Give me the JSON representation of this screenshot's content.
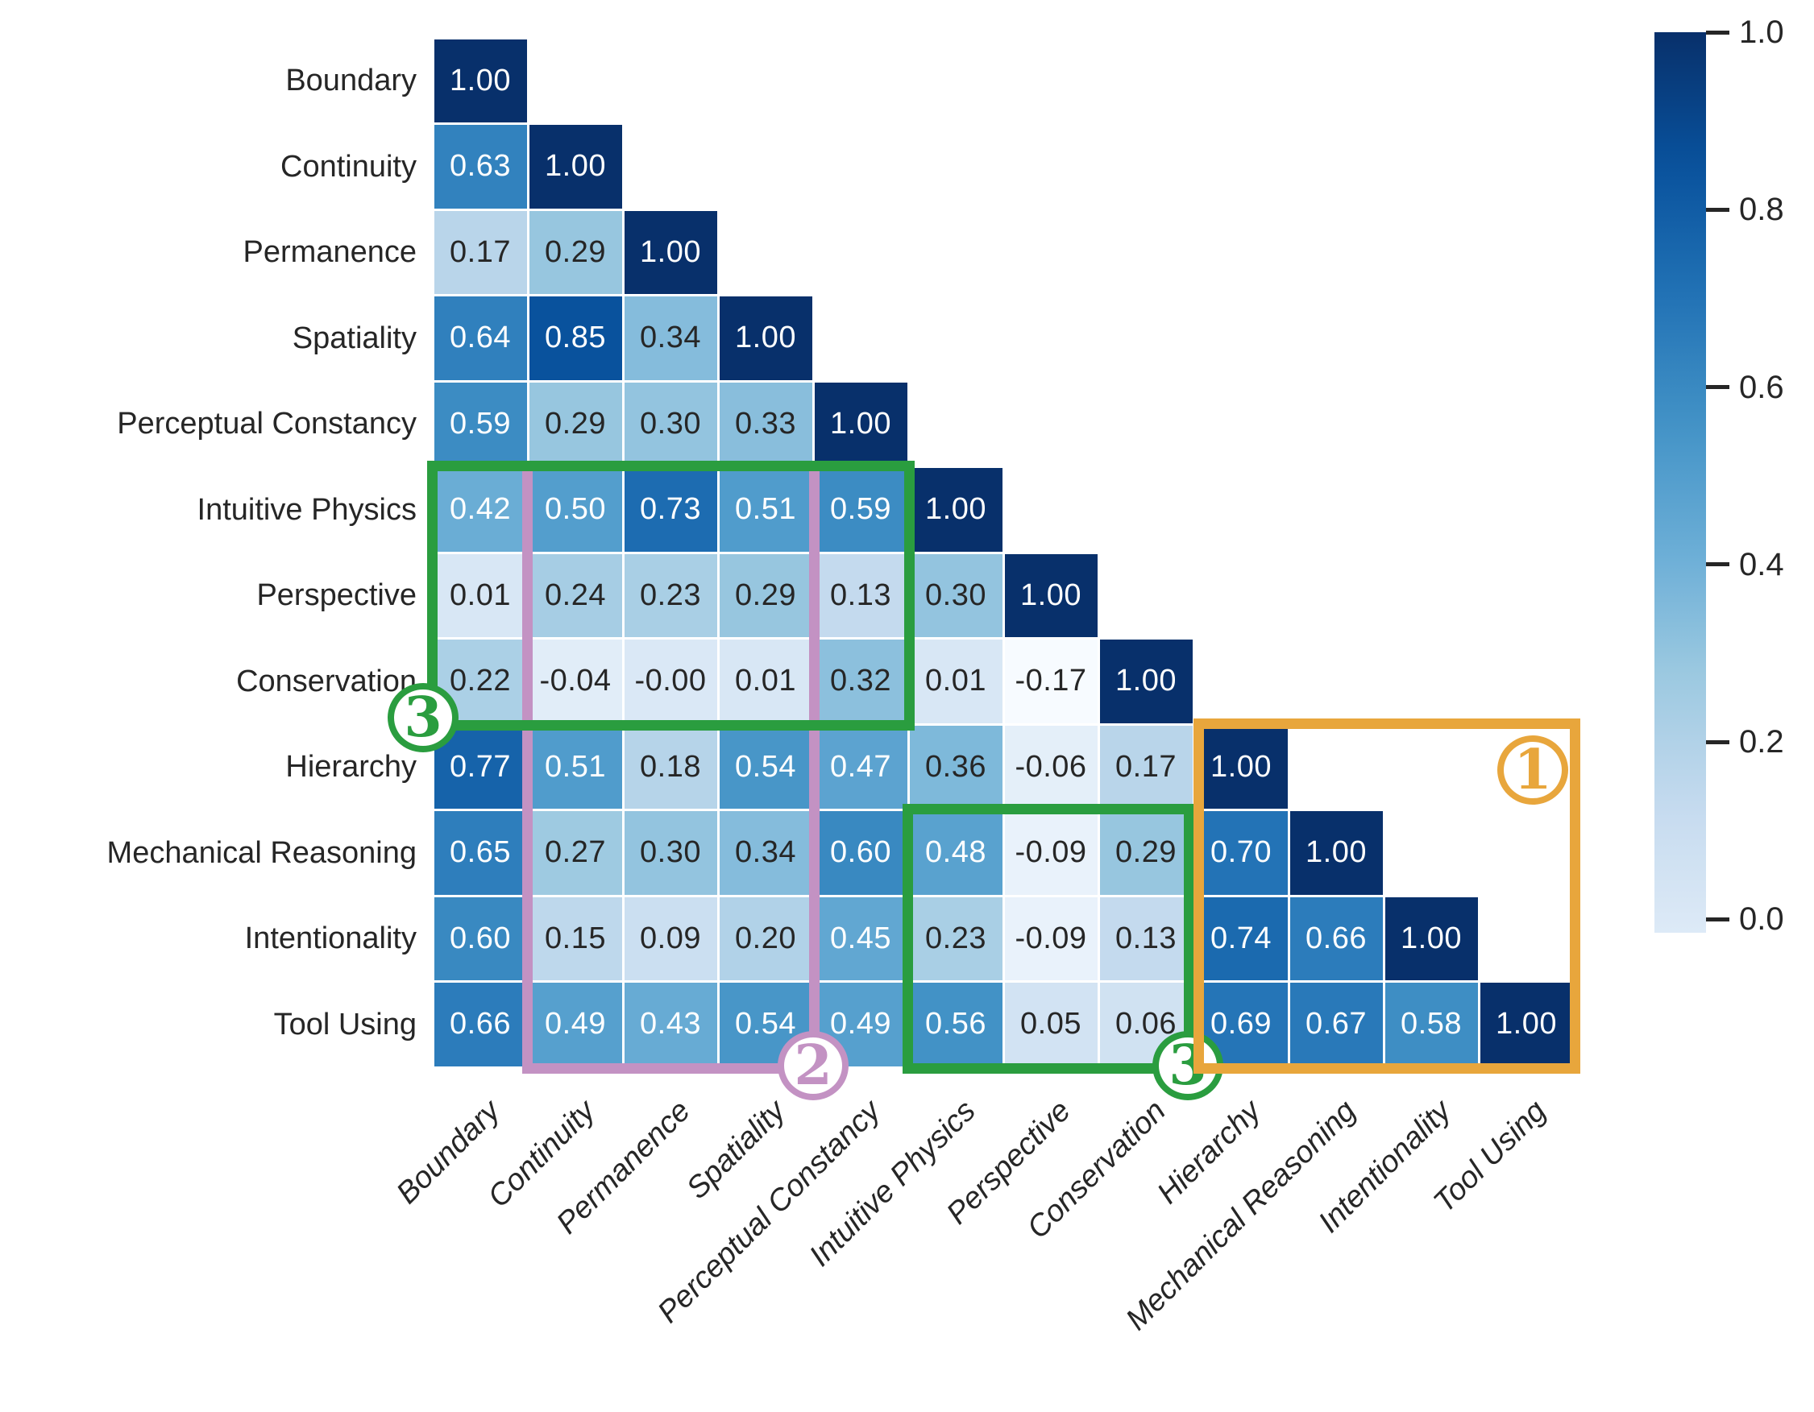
{
  "chart_data": {
    "type": "heatmap",
    "title": "",
    "subtitle": "",
    "layout": "lower-triangle correlation matrix, colorbar at right, grid gaps on",
    "categories": [
      "Boundary",
      "Continuity",
      "Permanence",
      "Spatiality",
      "Perceptual Constancy",
      "Intuitive Physics",
      "Perspective",
      "Conservation",
      "Hierarchy",
      "Mechanical Reasoning",
      "Intentionality",
      "Tool Using"
    ],
    "cell_values_lower_triangle": [
      [
        "1.00"
      ],
      [
        "0.63",
        "1.00"
      ],
      [
        "0.17",
        "0.29",
        "1.00"
      ],
      [
        "0.64",
        "0.85",
        "0.34",
        "1.00"
      ],
      [
        "0.59",
        "0.29",
        "0.30",
        "0.33",
        "1.00"
      ],
      [
        "0.42",
        "0.50",
        "0.73",
        "0.51",
        "0.59",
        "1.00"
      ],
      [
        "0.01",
        "0.24",
        "0.23",
        "0.29",
        "0.13",
        "0.30",
        "1.00"
      ],
      [
        "0.22",
        "-0.04",
        "-0.00",
        "0.01",
        "0.32",
        "0.01",
        "-0.17",
        "1.00"
      ],
      [
        "0.77",
        "0.51",
        "0.18",
        "0.54",
        "0.47",
        "0.36",
        "-0.06",
        "0.17",
        "1.00"
      ],
      [
        "0.65",
        "0.27",
        "0.30",
        "0.34",
        "0.60",
        "0.48",
        "-0.09",
        "0.29",
        "0.70",
        "1.00"
      ],
      [
        "0.60",
        "0.15",
        "0.09",
        "0.20",
        "0.45",
        "0.23",
        "-0.09",
        "0.13",
        "0.74",
        "0.66",
        "1.00"
      ],
      [
        "0.66",
        "0.49",
        "0.43",
        "0.54",
        "0.49",
        "0.56",
        "0.05",
        "0.06",
        "0.69",
        "0.67",
        "0.58",
        "1.00"
      ]
    ],
    "colorscale": {
      "name": "Blues",
      "vmin": -0.17,
      "vmax": 1.0,
      "anchors": [
        [
          0.0,
          "#f7fbff"
        ],
        [
          0.125,
          "#deebf7"
        ],
        [
          0.25,
          "#c6dbef"
        ],
        [
          0.375,
          "#9ecae1"
        ],
        [
          0.5,
          "#6baed6"
        ],
        [
          0.625,
          "#4292c6"
        ],
        [
          0.75,
          "#2171b5"
        ],
        [
          0.875,
          "#08519c"
        ],
        [
          1.0,
          "#08306b"
        ]
      ]
    },
    "text_colors": {
      "on_dark_cell": "#ffffff",
      "on_light_cell": "#262626",
      "white_text_threshold_t": 0.5
    },
    "colorbar": {
      "position": "right",
      "ticks": [
        "1.0",
        "0.8",
        "0.6",
        "0.4",
        "0.2",
        "0.0"
      ],
      "range_top": 1.0,
      "range_bottom": -0.015
    },
    "annotations": [
      {
        "number": "2",
        "color": "#C392C3",
        "row_start": "Intuitive Physics",
        "row_end": "Tool Using",
        "col_start": "Continuity",
        "col_end": "Spatiality",
        "label_corner": "bottom-right"
      },
      {
        "number": "3",
        "color": "#2A9D3F",
        "row_start": "Intuitive Physics",
        "row_end": "Conservation",
        "col_start": "Boundary",
        "col_end": "Perceptual Constancy",
        "label_corner": "bottom-left"
      },
      {
        "number": "3",
        "color": "#2A9D3F",
        "row_start": "Mechanical Reasoning",
        "row_end": "Tool Using",
        "col_start": "Intuitive Physics",
        "col_end": "Conservation",
        "label_corner": "bottom-right"
      },
      {
        "number": "1",
        "color": "#E8A63C",
        "row_start": "Hierarchy",
        "row_end": "Tool Using",
        "col_start": "Hierarchy",
        "col_end": "Tool Using",
        "label_corner": "top-right-inside"
      }
    ]
  }
}
